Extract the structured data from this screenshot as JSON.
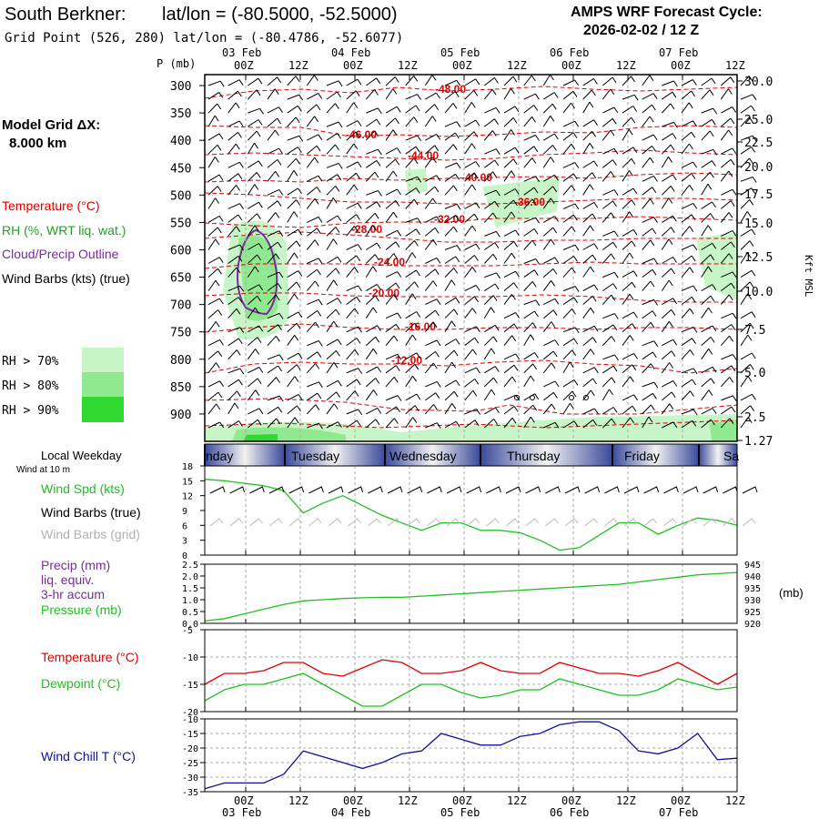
{
  "header": {
    "station": "South Berkner:",
    "latlon": "lat/lon = (-80.5000, -52.5000)",
    "gridpoint": "Grid Point (526, 280) lat/lon = (-80.4786, -52.6077)",
    "forecast_title": "AMPS WRF Forecast Cycle:",
    "forecast_cycle": "2026-02-02 / 12  Z"
  },
  "time_axis": {
    "tick_labels": [
      "00Z",
      "12Z",
      "00Z",
      "12Z",
      "00Z",
      "12Z",
      "00Z",
      "12Z",
      "00Z",
      "12Z"
    ],
    "date_labels": [
      "03 Feb",
      "04 Feb",
      "05 Feb",
      "06 Feb",
      "07 Feb"
    ],
    "weekdays": [
      "nday",
      "Tuesday",
      "Wednesday",
      "Thursday",
      "Friday",
      "Sa"
    ]
  },
  "left_panel": {
    "model_grid_label": "Model Grid ΔX:",
    "model_grid_value": "8.000 km",
    "legend_temperature": "Temperature (°C)",
    "legend_rh": "RH (%, WRT liq. wat.)",
    "legend_cloud": "Cloud/Precip Outline",
    "legend_wind": "Wind Barbs (kts) (true)",
    "rh_labels": [
      "RH > 70%",
      "RH > 80%",
      "RH > 90%"
    ],
    "local_weekday": "Local Weekday",
    "wind_at": "Wind at 10 m",
    "wind_spd": "Wind Spd (kts)",
    "wind_barbs_true": "Wind Barbs (true)",
    "wind_barbs_grid": "Wind Barbs (grid)",
    "precip": "Precip (mm)",
    "liq_equiv": "liq. equiv.",
    "accum": "3-hr accum",
    "pressure": "Pressure (mb)",
    "temperature": "Temperature (°C)",
    "dewpoint": "Dewpoint (°C)",
    "windchill": "Wind Chill T (°C)"
  },
  "colors": {
    "temperature": "#e00000",
    "rh70": "#c8f5c8",
    "rh80": "#90e890",
    "rh90": "#30d830",
    "cloud": "#7a2aa0",
    "windspd": "#20c020",
    "windchill": "#1010a0",
    "dewpoint": "#20c020"
  },
  "chart_data": [
    {
      "type": "contour",
      "panel": "cross-section",
      "ylabel_left": "P (mb)",
      "ylabel_right": "Kft MSL",
      "y_ticks": [
        300,
        350,
        400,
        450,
        500,
        550,
        600,
        650,
        700,
        750,
        800,
        850,
        900
      ],
      "right_ticks": [
        "30.0",
        "25.0",
        "22.5",
        "20.0",
        "17.5",
        "15.0",
        "12.5",
        "10.0",
        "7.5",
        "5.0",
        "2.5",
        "1.27"
      ],
      "temperature_contours": [
        "-48.00",
        "-46.00",
        "-44.00",
        "-40.00",
        "-36.00",
        "-32.00",
        "-28.00",
        "-24.00",
        "-20.00",
        "-16.00",
        "-12.00"
      ]
    },
    {
      "type": "line",
      "panel": "wind",
      "y_ticks": [
        "18",
        "15",
        "12",
        "9",
        "6",
        "3",
        "0"
      ],
      "ylim": [
        0,
        18
      ],
      "series": [
        {
          "name": "Wind Spd (kts)",
          "values": [
            15.3,
            15,
            14.5,
            14,
            13,
            8.5,
            10.5,
            12,
            10,
            8,
            6.5,
            5,
            6.5,
            6.5,
            5,
            5,
            4.5,
            3,
            1,
            1.5,
            4,
            6.5,
            6.5,
            4.2,
            6,
            7.5,
            7,
            6
          ]
        }
      ]
    },
    {
      "type": "line",
      "panel": "precip-pressure",
      "y_ticks_left": [
        "2.5",
        "2.0",
        "1.5",
        "1.0",
        "0.5",
        "0.0"
      ],
      "y_ticks_right": [
        "945",
        "940",
        "935",
        "930",
        "925",
        "920"
      ],
      "ylabel_right": "(mb)",
      "ylim": [
        920,
        945
      ],
      "series": [
        {
          "name": "Pressure (mb)",
          "values": [
            921,
            922,
            924,
            926,
            928,
            929.5,
            930,
            930.5,
            930.8,
            931,
            931,
            931.5,
            932,
            932.5,
            933,
            933.5,
            934,
            934.5,
            935,
            935.5,
            936,
            936.5,
            937.5,
            938.5,
            939.5,
            940.5,
            941,
            941.5
          ]
        }
      ]
    },
    {
      "type": "line",
      "panel": "temperature",
      "y_ticks": [
        "-5",
        "-10",
        "-15",
        "-20"
      ],
      "ylim": [
        -20,
        -5
      ],
      "series": [
        {
          "name": "Temperature (°C)",
          "values": [
            -15,
            -13,
            -13,
            -12.5,
            -11,
            -11,
            -13,
            -13.5,
            -12,
            -10.5,
            -11,
            -13,
            -13,
            -12.5,
            -11,
            -12.5,
            -13,
            -13,
            -11,
            -12,
            -13,
            -13,
            -13.5,
            -12.5,
            -11,
            -13,
            -15,
            -13
          ]
        },
        {
          "name": "Dewpoint (°C)",
          "values": [
            -18,
            -16,
            -15,
            -15,
            -14,
            -13,
            -15,
            -17,
            -19,
            -19,
            -17,
            -15,
            -15,
            -16.5,
            -17.5,
            -17,
            -16,
            -16,
            -14,
            -15,
            -16,
            -17,
            -17,
            -16,
            -14,
            -15,
            -16,
            -15.5
          ]
        }
      ]
    },
    {
      "type": "line",
      "panel": "windchill",
      "y_ticks": [
        "-10",
        "-15",
        "-20",
        "-25",
        "-30",
        "-35"
      ],
      "ylim": [
        -35,
        -10
      ],
      "series": [
        {
          "name": "Wind Chill T (°C)",
          "values": [
            -34,
            -32,
            -32,
            -32,
            -29,
            -21,
            -23,
            -25,
            -27,
            -25,
            -22,
            -21,
            -15,
            -17,
            -19,
            -19,
            -16,
            -15,
            -12,
            -11,
            -11,
            -14,
            -21,
            -22,
            -20,
            -15,
            -24,
            -23.5
          ]
        }
      ]
    }
  ]
}
